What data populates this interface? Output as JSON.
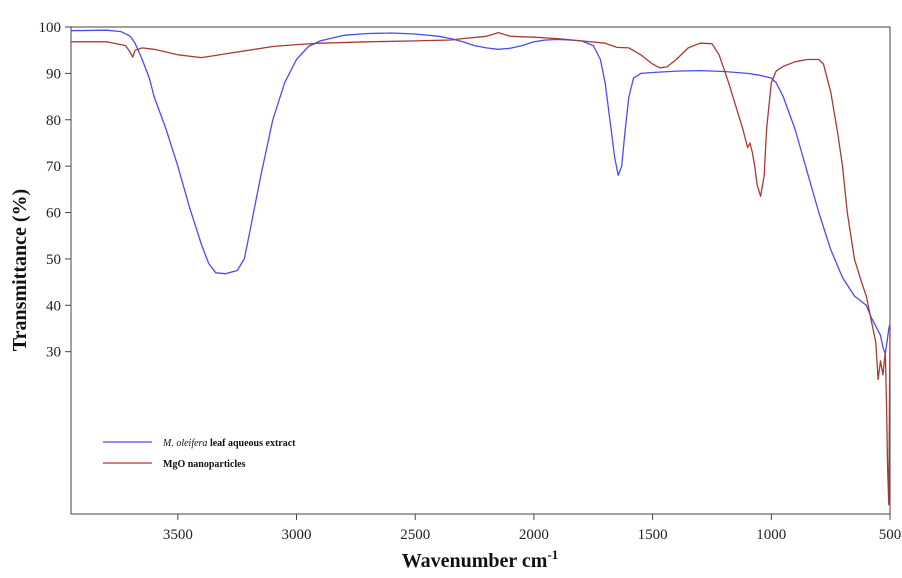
{
  "chart_data": {
    "type": "line",
    "xlabel": "Wavenumber cm",
    "xlabel_superscript": "-1",
    "ylabel": "Transmittance (%)",
    "xlim": [
      3950,
      500
    ],
    "ylim": [
      -5,
      100
    ],
    "x_reversed": true,
    "grid": false,
    "legend_position": "bottom-left",
    "x_ticks": [
      3500,
      3000,
      2500,
      2000,
      1500,
      1000,
      500
    ],
    "y_ticks": [
      30,
      40,
      50,
      60,
      70,
      80,
      90,
      100
    ],
    "series": [
      {
        "name_italic": "M. oleifera",
        "name_rest": " leaf aqueous extract",
        "color": "#4a4cf0",
        "points": [
          [
            3950,
            99.2
          ],
          [
            3800,
            99.3
          ],
          [
            3740,
            99.0
          ],
          [
            3700,
            98.0
          ],
          [
            3680,
            96.5
          ],
          [
            3650,
            93
          ],
          [
            3620,
            89
          ],
          [
            3600,
            85
          ],
          [
            3550,
            78
          ],
          [
            3500,
            70
          ],
          [
            3450,
            61
          ],
          [
            3400,
            53
          ],
          [
            3370,
            49
          ],
          [
            3340,
            47
          ],
          [
            3300,
            46.8
          ],
          [
            3250,
            47.5
          ],
          [
            3220,
            50
          ],
          [
            3200,
            55
          ],
          [
            3150,
            68
          ],
          [
            3100,
            80
          ],
          [
            3050,
            88
          ],
          [
            3000,
            93
          ],
          [
            2950,
            95.8
          ],
          [
            2900,
            97
          ],
          [
            2800,
            98.2
          ],
          [
            2700,
            98.6
          ],
          [
            2600,
            98.7
          ],
          [
            2500,
            98.5
          ],
          [
            2400,
            98.0
          ],
          [
            2350,
            97.5
          ],
          [
            2300,
            96.8
          ],
          [
            2250,
            96.0
          ],
          [
            2200,
            95.5
          ],
          [
            2150,
            95.2
          ],
          [
            2100,
            95.4
          ],
          [
            2050,
            96.0
          ],
          [
            2000,
            96.8
          ],
          [
            1950,
            97.2
          ],
          [
            1900,
            97.3
          ],
          [
            1850,
            97.2
          ],
          [
            1800,
            97.0
          ],
          [
            1750,
            96.0
          ],
          [
            1720,
            93.0
          ],
          [
            1700,
            88.0
          ],
          [
            1680,
            80.0
          ],
          [
            1660,
            72.0
          ],
          [
            1645,
            68.0
          ],
          [
            1630,
            70.0
          ],
          [
            1615,
            78.0
          ],
          [
            1600,
            85.0
          ],
          [
            1580,
            89.0
          ],
          [
            1550,
            90.0
          ],
          [
            1500,
            90.2
          ],
          [
            1400,
            90.5
          ],
          [
            1300,
            90.6
          ],
          [
            1200,
            90.4
          ],
          [
            1100,
            90.0
          ],
          [
            1050,
            89.6
          ],
          [
            1000,
            89.0
          ],
          [
            980,
            88.0
          ],
          [
            950,
            85.0
          ],
          [
            900,
            78.0
          ],
          [
            850,
            69.0
          ],
          [
            800,
            60.0
          ],
          [
            750,
            52.0
          ],
          [
            700,
            46.0
          ],
          [
            650,
            42.0
          ],
          [
            600,
            40.0
          ],
          [
            580,
            37.5
          ],
          [
            560,
            35.5
          ],
          [
            540,
            33.5
          ],
          [
            530,
            31.0
          ],
          [
            520,
            29.5
          ],
          [
            510,
            33.0
          ],
          [
            505,
            35.0
          ],
          [
            500,
            36.0
          ]
        ]
      },
      {
        "name": "MgO nanoparticles",
        "color": "#a83a35",
        "points": [
          [
            3950,
            96.8
          ],
          [
            3800,
            96.8
          ],
          [
            3720,
            96.0
          ],
          [
            3700,
            94.5
          ],
          [
            3690,
            93.5
          ],
          [
            3680,
            95.0
          ],
          [
            3650,
            95.5
          ],
          [
            3600,
            95.2
          ],
          [
            3500,
            94.0
          ],
          [
            3400,
            93.4
          ],
          [
            3300,
            94.2
          ],
          [
            3200,
            95.0
          ],
          [
            3100,
            95.8
          ],
          [
            3000,
            96.2
          ],
          [
            2900,
            96.5
          ],
          [
            2700,
            96.8
          ],
          [
            2500,
            97.0
          ],
          [
            2350,
            97.2
          ],
          [
            2300,
            97.5
          ],
          [
            2200,
            98.0
          ],
          [
            2150,
            98.8
          ],
          [
            2100,
            98.0
          ],
          [
            2000,
            97.8
          ],
          [
            1900,
            97.5
          ],
          [
            1800,
            97.0
          ],
          [
            1700,
            96.5
          ],
          [
            1650,
            95.6
          ],
          [
            1600,
            95.5
          ],
          [
            1550,
            94.0
          ],
          [
            1500,
            92.0
          ],
          [
            1470,
            91.2
          ],
          [
            1440,
            91.4
          ],
          [
            1400,
            93.0
          ],
          [
            1350,
            95.5
          ],
          [
            1300,
            96.5
          ],
          [
            1250,
            96.4
          ],
          [
            1220,
            94.0
          ],
          [
            1180,
            88.0
          ],
          [
            1150,
            83.0
          ],
          [
            1120,
            78.0
          ],
          [
            1100,
            74.0
          ],
          [
            1090,
            75.0
          ],
          [
            1080,
            73.0
          ],
          [
            1070,
            70.0
          ],
          [
            1060,
            66.0
          ],
          [
            1045,
            63.5
          ],
          [
            1030,
            68.0
          ],
          [
            1020,
            78.0
          ],
          [
            1000,
            88.0
          ],
          [
            980,
            90.5
          ],
          [
            950,
            91.5
          ],
          [
            900,
            92.5
          ],
          [
            850,
            93.0
          ],
          [
            800,
            93.0
          ],
          [
            780,
            92.0
          ],
          [
            750,
            86.0
          ],
          [
            720,
            77.0
          ],
          [
            700,
            70.0
          ],
          [
            680,
            60.0
          ],
          [
            650,
            50.0
          ],
          [
            620,
            45.0
          ],
          [
            600,
            42.0
          ],
          [
            580,
            37.0
          ],
          [
            560,
            32.0
          ],
          [
            550,
            24.0
          ],
          [
            540,
            28.0
          ],
          [
            530,
            25.0
          ],
          [
            520,
            30.0
          ],
          [
            515,
            20.0
          ],
          [
            510,
            5.0
          ],
          [
            505,
            -3.0
          ],
          [
            502,
            20.0
          ],
          [
            500,
            35.5
          ]
        ]
      }
    ]
  }
}
